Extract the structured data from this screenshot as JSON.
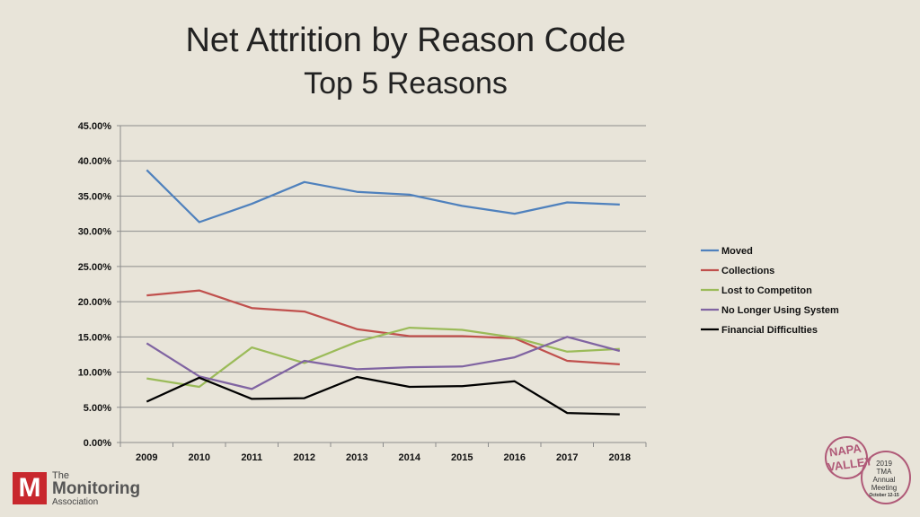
{
  "chart_data": {
    "type": "line",
    "title": "Net Attrition by Reason Code",
    "subtitle": "Top 5 Reasons",
    "xlabel": "",
    "ylabel": "",
    "x": [
      "2009",
      "2010",
      "2011",
      "2012",
      "2013",
      "2014",
      "2015",
      "2016",
      "2017",
      "2018"
    ],
    "ylim": [
      0,
      45
    ],
    "y_ticks": [
      "0.00%",
      "5.00%",
      "10.00%",
      "15.00%",
      "20.00%",
      "25.00%",
      "30.00%",
      "35.00%",
      "40.00%",
      "45.00%"
    ],
    "y_tick_values": [
      0,
      5,
      10,
      15,
      20,
      25,
      30,
      35,
      40,
      45
    ],
    "grid": true,
    "legend_position": "right",
    "series": [
      {
        "name": "Moved",
        "color": "#4f81bd",
        "values": [
          38.7,
          31.3,
          33.9,
          37.0,
          35.6,
          35.2,
          33.6,
          32.5,
          34.1,
          33.8
        ]
      },
      {
        "name": "Collections",
        "color": "#c0504d",
        "values": [
          20.9,
          21.6,
          19.1,
          18.6,
          16.1,
          15.1,
          15.1,
          14.8,
          11.6,
          11.1
        ]
      },
      {
        "name": "Lost to Competiton",
        "color": "#9bbb59",
        "values": [
          9.1,
          7.9,
          13.5,
          11.3,
          14.3,
          16.3,
          16.0,
          14.9,
          12.9,
          13.3
        ]
      },
      {
        "name": "No Longer Using System",
        "color": "#8064a2",
        "values": [
          14.1,
          9.4,
          7.6,
          11.6,
          10.4,
          10.7,
          10.8,
          12.1,
          15.0,
          13.0
        ]
      },
      {
        "name": "Financial Difficulties",
        "color": "#000000",
        "values": [
          5.8,
          9.2,
          6.2,
          6.3,
          9.3,
          7.9,
          8.0,
          8.7,
          4.2,
          4.0
        ]
      }
    ]
  },
  "logos": {
    "tma_mark": "M",
    "tma_line1": "The",
    "tma_line2": "Monitoring",
    "tma_line3": "Association",
    "badge_napa": "NAPA VALLEY",
    "badge_year": "2019",
    "badge_org": "TMA",
    "badge_line1": "Annual",
    "badge_line2": "Meeting",
    "badge_date": "October 12-15"
  }
}
